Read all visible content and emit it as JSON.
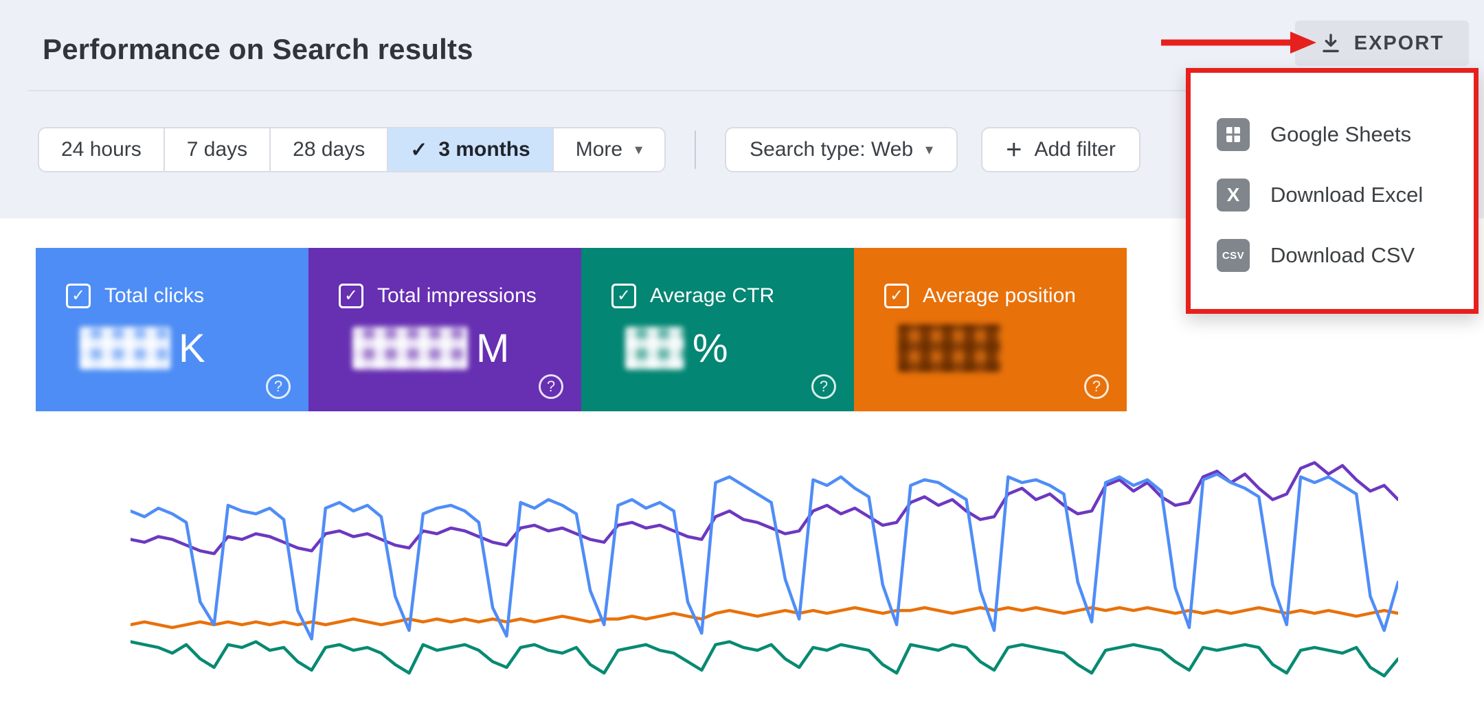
{
  "page": {
    "title": "Performance on Search results"
  },
  "icons": {
    "check": "✓",
    "caret": "▾",
    "plus": "+",
    "help": "?"
  },
  "annotation_color": "#e6201d",
  "export": {
    "button_label": "EXPORT",
    "menu_items": [
      {
        "label": "Google Sheets"
      },
      {
        "label": "Download Excel",
        "icon_text": "X"
      },
      {
        "label": "Download CSV",
        "icon_text": "CSV"
      }
    ]
  },
  "filters": {
    "date_ranges": [
      {
        "label": "24 hours",
        "selected": false
      },
      {
        "label": "7 days",
        "selected": false
      },
      {
        "label": "28 days",
        "selected": false
      },
      {
        "label": "3 months",
        "selected": true
      },
      {
        "label": "More",
        "selected": false
      }
    ],
    "search_type": "Search type: Web",
    "add_filter": "Add filter"
  },
  "metric_cards": [
    {
      "label": "Total clicks",
      "value_suffix": "K",
      "color": "#4e8df5",
      "checked": true,
      "value_redacted": true
    },
    {
      "label": "Total impressions",
      "value_suffix": "M",
      "color": "#672fb2",
      "checked": true,
      "value_redacted": true
    },
    {
      "label": "Average CTR",
      "value_suffix": "%",
      "color": "#038673",
      "checked": true,
      "value_redacted": true
    },
    {
      "label": "Average position",
      "value_suffix": "",
      "color": "#e8710a",
      "checked": true,
      "value_redacted": true
    }
  ],
  "chart_data": {
    "type": "line",
    "x_range": "3 months",
    "num_points": 92,
    "ylim": [
      0,
      100
    ],
    "values_note": "metric values blurred in screenshot; series estimated from line positions, normalized 0-100",
    "series": [
      {
        "name": "Total impressions",
        "color": "#6c38c0",
        "values": [
          60,
          59,
          61,
          60,
          58,
          56,
          55,
          61,
          60,
          62,
          61,
          59,
          57,
          56,
          62,
          63,
          61,
          62,
          60,
          58,
          57,
          63,
          62,
          64,
          63,
          61,
          59,
          58,
          64,
          65,
          63,
          64,
          62,
          60,
          59,
          65,
          66,
          64,
          65,
          63,
          61,
          60,
          68,
          70,
          67,
          66,
          64,
          62,
          63,
          70,
          72,
          69,
          71,
          68,
          65,
          66,
          73,
          75,
          72,
          74,
          70,
          67,
          68,
          76,
          78,
          74,
          76,
          72,
          69,
          70,
          79,
          81,
          77,
          80,
          75,
          72,
          73,
          82,
          84,
          80,
          83,
          78,
          74,
          76,
          85,
          87,
          83,
          86,
          81,
          77,
          79,
          74
        ]
      },
      {
        "name": "Average position",
        "color": "#e8710a",
        "values": [
          30,
          31,
          30,
          29,
          30,
          31,
          30,
          31,
          30,
          31,
          30,
          31,
          30,
          31,
          30,
          31,
          32,
          31,
          30,
          31,
          32,
          31,
          32,
          31,
          32,
          31,
          32,
          31,
          32,
          31,
          32,
          33,
          32,
          31,
          32,
          32,
          33,
          32,
          33,
          34,
          33,
          32,
          34,
          35,
          34,
          33,
          34,
          35,
          34,
          35,
          34,
          35,
          36,
          35,
          34,
          35,
          35,
          36,
          35,
          34,
          35,
          36,
          35,
          36,
          35,
          36,
          35,
          34,
          35,
          36,
          35,
          36,
          35,
          36,
          35,
          34,
          35,
          34,
          35,
          34,
          35,
          36,
          35,
          34,
          35,
          34,
          35,
          34,
          33,
          34,
          35,
          34
        ]
      },
      {
        "name": "Average CTR",
        "color": "#078a72",
        "values": [
          24,
          23,
          22,
          20,
          23,
          18,
          15,
          23,
          22,
          24,
          21,
          22,
          17,
          14,
          22,
          23,
          21,
          22,
          20,
          16,
          13,
          23,
          21,
          22,
          23,
          21,
          17,
          15,
          22,
          23,
          21,
          20,
          22,
          16,
          13,
          21,
          22,
          23,
          21,
          20,
          17,
          14,
          23,
          24,
          22,
          21,
          23,
          18,
          15,
          22,
          21,
          23,
          22,
          21,
          16,
          13,
          23,
          22,
          21,
          23,
          22,
          17,
          14,
          22,
          23,
          22,
          21,
          20,
          16,
          13,
          21,
          22,
          23,
          22,
          21,
          17,
          14,
          22,
          21,
          22,
          23,
          22,
          16,
          13,
          21,
          22,
          21,
          20,
          22,
          15,
          12,
          18
        ]
      },
      {
        "name": "Total clicks",
        "color": "#4f8df7",
        "values": [
          70,
          68,
          71,
          69,
          66,
          38,
          30,
          72,
          70,
          69,
          71,
          67,
          35,
          25,
          71,
          73,
          70,
          72,
          68,
          40,
          28,
          69,
          71,
          72,
          70,
          66,
          36,
          26,
          73,
          71,
          74,
          72,
          69,
          42,
          30,
          72,
          74,
          71,
          73,
          70,
          38,
          27,
          80,
          82,
          79,
          76,
          73,
          46,
          32,
          81,
          79,
          82,
          78,
          75,
          44,
          30,
          79,
          81,
          80,
          77,
          74,
          42,
          28,
          82,
          80,
          81,
          79,
          76,
          45,
          31,
          80,
          82,
          79,
          81,
          77,
          43,
          29,
          81,
          83,
          80,
          78,
          75,
          44,
          30,
          82,
          80,
          82,
          79,
          76,
          40,
          28,
          45
        ]
      }
    ]
  }
}
